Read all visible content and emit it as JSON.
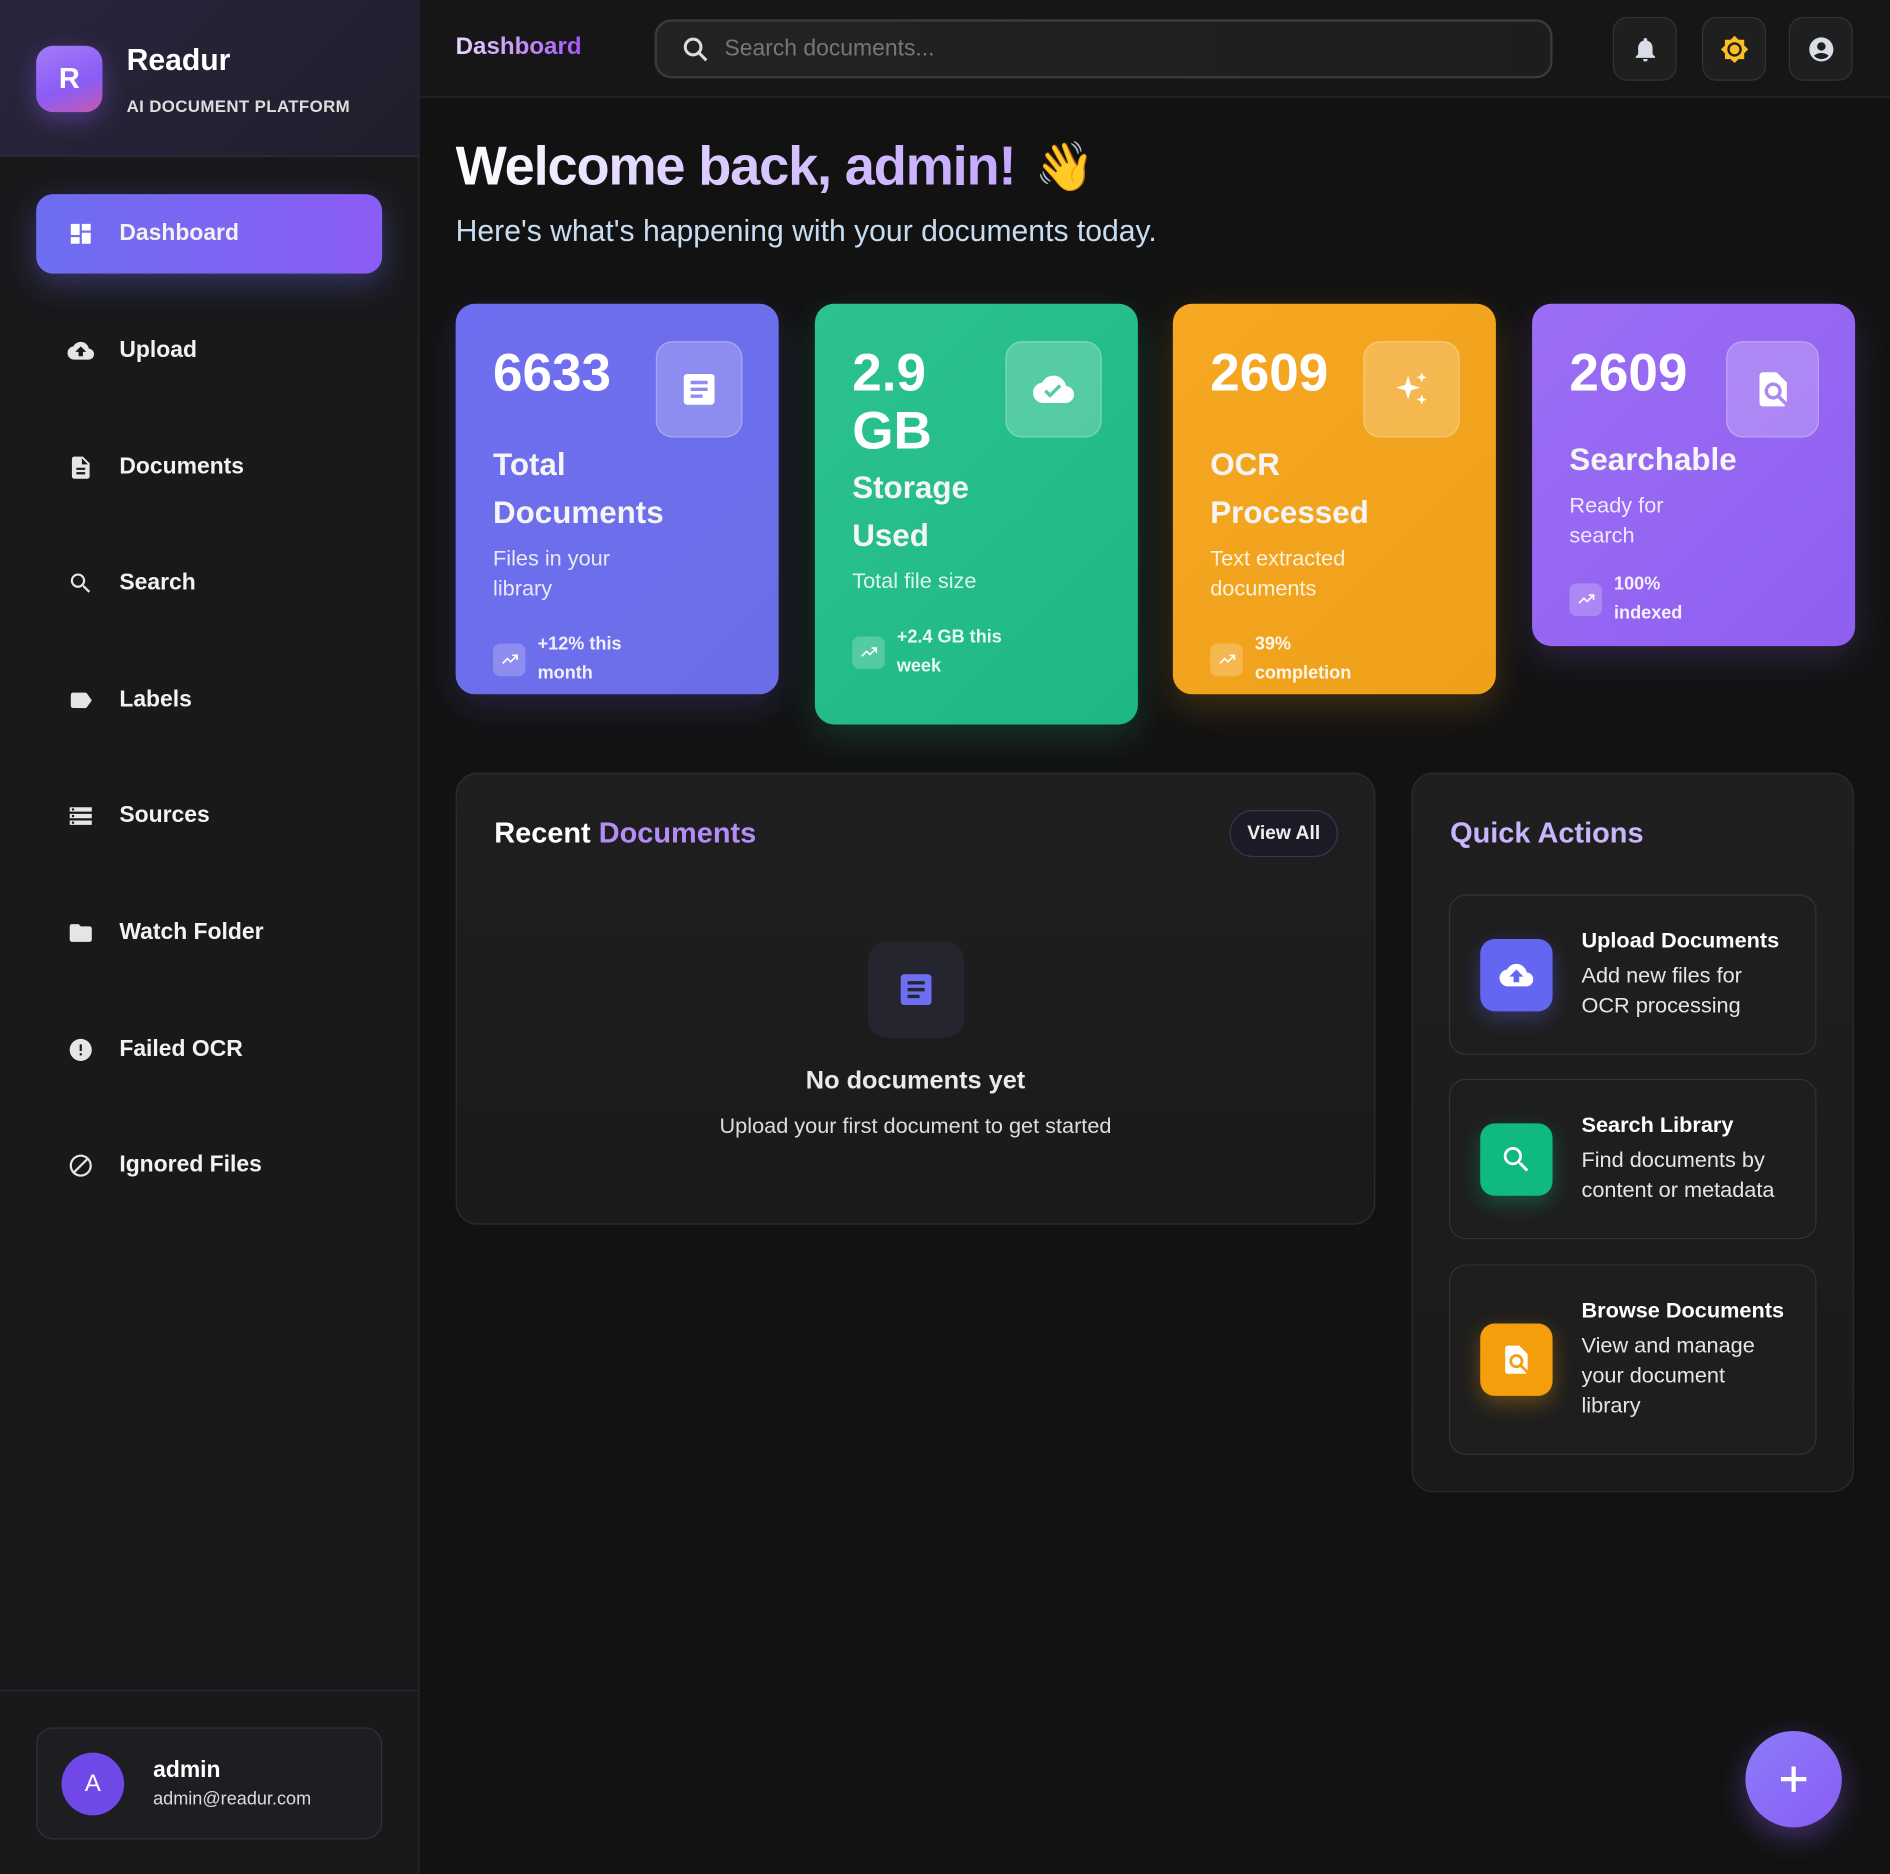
{
  "brand": {
    "logo_letter": "R",
    "name": "Readur",
    "tagline": "AI DOCUMENT PLATFORM"
  },
  "sidebar": {
    "items": [
      {
        "label": "Dashboard",
        "icon": "dashboard-icon",
        "active": true
      },
      {
        "label": "Upload",
        "icon": "cloud-upload-icon"
      },
      {
        "label": "Documents",
        "icon": "document-icon"
      },
      {
        "label": "Search",
        "icon": "search-icon"
      },
      {
        "label": "Labels",
        "icon": "label-icon"
      },
      {
        "label": "Sources",
        "icon": "storage-icon"
      },
      {
        "label": "Watch Folder",
        "icon": "folder-icon"
      },
      {
        "label": "Failed OCR",
        "icon": "error-icon"
      },
      {
        "label": "Ignored Files",
        "icon": "block-icon"
      }
    ]
  },
  "user": {
    "avatar_letter": "A",
    "name": "admin",
    "email": "admin@readur.com"
  },
  "header": {
    "title": "Dashboard",
    "search_placeholder": "Search documents..."
  },
  "welcome": {
    "greeting": "Welcome back, admin!",
    "emoji": "👋",
    "subtitle": "Here's what's happening with your documents today."
  },
  "stats": [
    {
      "value": "6633",
      "title": "Total Documents",
      "desc": "Files in your library",
      "trend": "+12% this month",
      "color_from": "#6f6ef0",
      "color_to": "#6b6ee8",
      "icon": "article-icon"
    },
    {
      "value": "2.9 GB",
      "title": "Storage Used",
      "desc": "Total file size",
      "trend": "+2.4 GB this week",
      "color_from": "#2cc290",
      "color_to": "#1db884",
      "icon": "cloud-done-icon"
    },
    {
      "value": "2609",
      "title": "OCR Processed",
      "desc": "Text extracted documents",
      "trend": "39% completion",
      "color_from": "#f6a823",
      "color_to": "#efa019",
      "icon": "sparkle-icon"
    },
    {
      "value": "2609",
      "title": "Searchable",
      "desc": "Ready for search",
      "trend": "100% indexed",
      "color_from": "#9b6ef5",
      "color_to": "#8f5ff0",
      "icon": "find-in-page-icon"
    }
  ],
  "recent": {
    "title_a": "Recent",
    "title_b": "Documents",
    "view_all": "View All",
    "empty_title": "No documents yet",
    "empty_sub": "Upload your first document to get started"
  },
  "quick_actions": {
    "title": "Quick Actions",
    "items": [
      {
        "title": "Upload Documents",
        "desc": "Add new files for OCR processing",
        "color": "#6366f1"
      },
      {
        "title": "Search Library",
        "desc": "Find documents by content or metadata",
        "color": "#10b981"
      },
      {
        "title": "Browse Documents",
        "desc": "View and manage your document library",
        "color": "#f59e0b"
      }
    ]
  }
}
